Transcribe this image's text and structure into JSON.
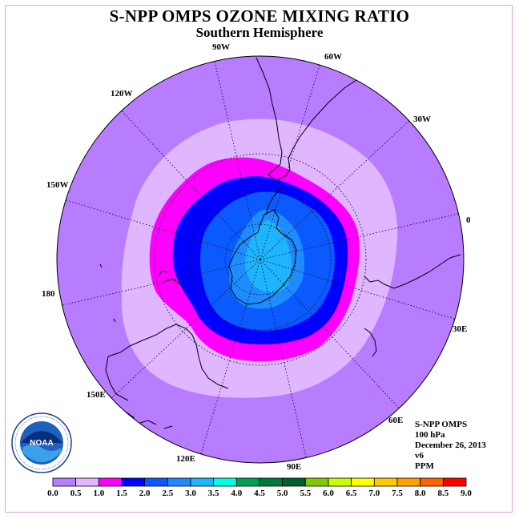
{
  "header": {
    "title": "S-NPP OMPS OZONE MIXING RATIO",
    "subtitle": "Southern Hemisphere"
  },
  "map": {
    "projection": "south-polar-stereographic",
    "longitude_labels": [
      "90W",
      "60W",
      "30W",
      "0",
      "30E",
      "60E",
      "90E",
      "120E",
      "150E",
      "180",
      "150W",
      "120W"
    ],
    "ocean_color": "#b77cff",
    "coastline_color": "#000000",
    "gridline_style": "dotted"
  },
  "info": {
    "product": "S-NPP OMPS",
    "level": "100 hPa",
    "date": "December 26, 2013",
    "version": "v6",
    "units": "PPM"
  },
  "colorbar": {
    "ticks": [
      "0.0",
      "0.5",
      "1.0",
      "1.5",
      "2.0",
      "2.5",
      "3.0",
      "3.5",
      "4.0",
      "4.5",
      "5.0",
      "5.5",
      "6.0",
      "6.5",
      "7.0",
      "7.5",
      "8.0",
      "8.5",
      "9.0"
    ],
    "colors": [
      "#b77cff",
      "#dfb6ff",
      "#ff00ff",
      "#0000ff",
      "#0a5aff",
      "#1e8cff",
      "#1eb4ff",
      "#00ffe0",
      "#00a050",
      "#007a3c",
      "#006030",
      "#80cc00",
      "#c8ff00",
      "#ffff00",
      "#ffc800",
      "#ffa000",
      "#ff6400",
      "#ff0000",
      "#8b5a3c"
    ]
  },
  "logo": {
    "text": "NOAA",
    "ring_text": "NATIONAL OCEANIC AND ATMOSPHERIC ADMINISTRATION · U.S. DEPARTMENT OF COMMERCE"
  }
}
